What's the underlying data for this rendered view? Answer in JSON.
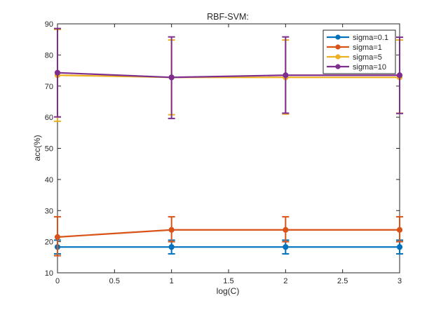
{
  "chart_data": {
    "type": "line",
    "title": "RBF-SVM:",
    "xlabel": "log(C)",
    "ylabel": "acc(%)",
    "xlim": [
      0,
      3
    ],
    "ylim": [
      10,
      90
    ],
    "xticks": [
      0,
      0.5,
      1,
      1.5,
      2,
      2.5,
      3
    ],
    "xtick_labels": [
      "0",
      "0.5",
      "1",
      "1.5",
      "2",
      "2.5",
      "3"
    ],
    "yticks": [
      10,
      20,
      30,
      40,
      50,
      60,
      70,
      80,
      90
    ],
    "ytick_labels": [
      "10",
      "20",
      "30",
      "40",
      "50",
      "60",
      "70",
      "80",
      "90"
    ],
    "grid": false,
    "legend_position": "top-right",
    "x": [
      0,
      1,
      2,
      3
    ],
    "series": [
      {
        "name": "sigma=0.1",
        "color": "#0072BD",
        "values": [
          18.3,
          18.3,
          18.3,
          18.3
        ],
        "err_low": [
          2.2,
          2.2,
          2.2,
          2.2
        ],
        "err_high": [
          2.2,
          2.2,
          2.2,
          2.2
        ]
      },
      {
        "name": "sigma=1",
        "color": "#D95319",
        "values": [
          21.5,
          23.8,
          23.8,
          23.8
        ],
        "err_low": [
          6.0,
          3.8,
          3.8,
          3.8
        ],
        "err_high": [
          6.5,
          4.2,
          4.2,
          4.2
        ]
      },
      {
        "name": "sigma=5",
        "color": "#EDB120",
        "values": [
          73.5,
          72.8,
          72.8,
          72.8
        ],
        "err_low": [
          14.8,
          12.0,
          11.8,
          11.5
        ],
        "err_high": [
          14.7,
          12.0,
          12.0,
          12.0
        ]
      },
      {
        "name": "sigma=10",
        "color": "#7E2F8E",
        "values": [
          74.3,
          72.8,
          73.5,
          73.5
        ],
        "err_low": [
          14.2,
          13.2,
          12.2,
          12.3
        ],
        "err_high": [
          14.2,
          13.0,
          12.3,
          12.2
        ]
      }
    ]
  }
}
